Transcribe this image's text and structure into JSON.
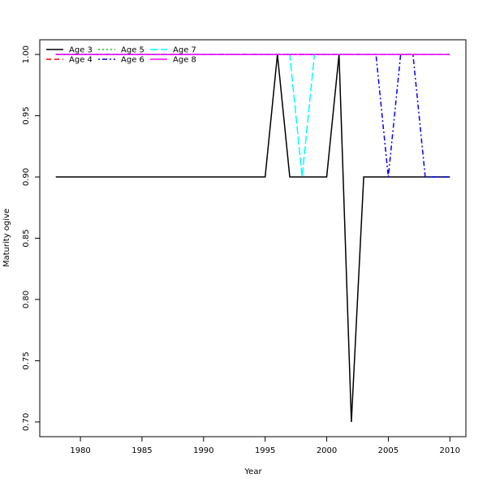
{
  "chart_data": {
    "type": "line",
    "title": "",
    "xlabel": "Year",
    "ylabel": "Maturity ogive",
    "xlim": [
      1976.7,
      2011.3
    ],
    "ylim": [
      0.688,
      1.012
    ],
    "x_ticks": [
      1980,
      1985,
      1990,
      1995,
      2000,
      2005,
      2010
    ],
    "y_ticks": [
      0.7,
      0.75,
      0.8,
      0.85,
      0.9,
      0.95,
      1.0
    ],
    "y_tick_labels": [
      "0.70",
      "0.75",
      "0.80",
      "0.85",
      "0.90",
      "0.95",
      "1.00"
    ],
    "grid": false,
    "legend_position": "top-left",
    "series": [
      {
        "name": "Age 3",
        "color": "#000000",
        "dash": "solid",
        "x": [
          1978,
          1995,
          1996,
          1997,
          2000,
          2001,
          2002,
          2003,
          2010
        ],
        "y": [
          0.9,
          0.9,
          1.0,
          0.9,
          0.9,
          1.0,
          0.7,
          0.9,
          0.9
        ]
      },
      {
        "name": "Age 4",
        "color": "#ff0000",
        "dash": "dashed",
        "x": [
          1978,
          2010
        ],
        "y": [
          1.0,
          1.0
        ]
      },
      {
        "name": "Age 5",
        "color": "#00cd00",
        "dash": "dotted",
        "x": [
          1978,
          2010
        ],
        "y": [
          1.0,
          1.0
        ]
      },
      {
        "name": "Age 6",
        "color": "#0000ff",
        "dash": "dotdash",
        "x": [
          1978,
          2004,
          2005,
          2006,
          2007,
          2008,
          2010
        ],
        "y": [
          1.0,
          1.0,
          0.9,
          1.0,
          1.0,
          0.9,
          0.9
        ]
      },
      {
        "name": "Age 7",
        "color": "#00ffff",
        "dash": "longdash",
        "x": [
          1978,
          1997,
          1998,
          1999,
          2010
        ],
        "y": [
          1.0,
          1.0,
          0.9,
          1.0,
          1.0
        ]
      },
      {
        "name": "Age 8",
        "color": "#ff00ff",
        "dash": "solid",
        "x": [
          1978,
          2010
        ],
        "y": [
          1.0,
          1.0
        ]
      }
    ]
  }
}
